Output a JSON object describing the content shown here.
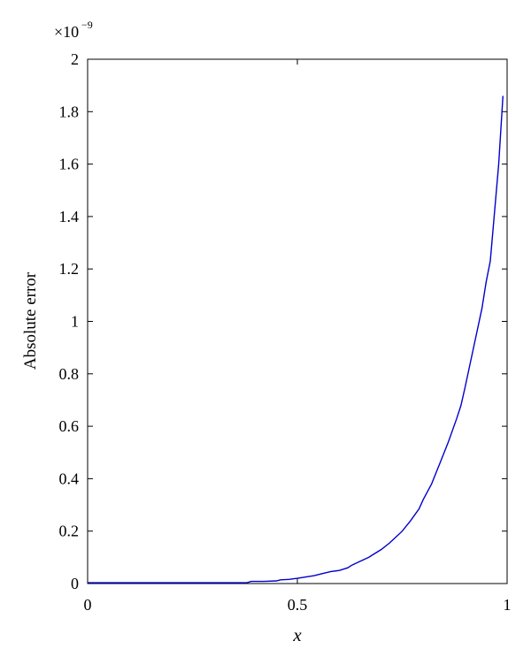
{
  "chart_data": {
    "type": "line",
    "xlabel": "x",
    "ylabel": "Absolute error",
    "y_exponent": {
      "base": "×10",
      "power": "−9"
    },
    "xlim": [
      0,
      1
    ],
    "ylim": [
      0,
      2
    ],
    "x_ticks": [
      0,
      0.5,
      1
    ],
    "x_tick_labels": [
      "0",
      "0.5",
      "1"
    ],
    "y_ticks": [
      0,
      0.2,
      0.4,
      0.6,
      0.8,
      1.0,
      1.2,
      1.4,
      1.6,
      1.8,
      2.0
    ],
    "y_tick_labels": [
      "0",
      "0.2",
      "0.4",
      "0.6",
      "0.8",
      "1",
      "1.2",
      "1.4",
      "1.6",
      "1.8",
      "2"
    ],
    "grid": false,
    "line_color": "#0000cc",
    "series": [
      {
        "x": [
          0,
          0.1,
          0.2,
          0.3,
          0.38,
          0.39,
          0.42,
          0.45,
          0.46,
          0.48,
          0.5,
          0.52,
          0.54,
          0.56,
          0.58,
          0.6,
          0.62,
          0.63,
          0.65,
          0.67,
          0.68,
          0.7,
          0.72,
          0.73,
          0.75,
          0.77,
          0.79,
          0.8,
          0.82,
          0.83,
          0.84,
          0.86,
          0.88,
          0.89,
          0.9,
          0.92,
          0.94,
          0.95,
          0.96,
          0.98,
          0.99
        ],
        "y": [
          0.003,
          0.003,
          0.003,
          0.003,
          0.003,
          0.008,
          0.008,
          0.01,
          0.014,
          0.016,
          0.02,
          0.025,
          0.03,
          0.038,
          0.046,
          0.05,
          0.06,
          0.07,
          0.085,
          0.1,
          0.11,
          0.13,
          0.155,
          0.17,
          0.2,
          0.24,
          0.285,
          0.32,
          0.38,
          0.42,
          0.46,
          0.54,
          0.63,
          0.68,
          0.75,
          0.9,
          1.05,
          1.15,
          1.23,
          1.6,
          1.86
        ]
      }
    ]
  }
}
